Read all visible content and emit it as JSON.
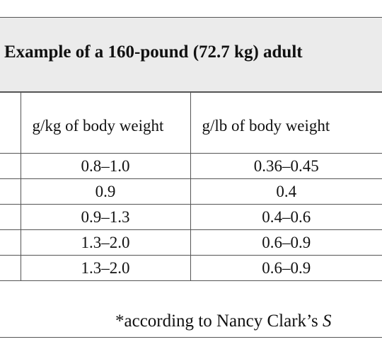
{
  "header": {
    "title": "Example of a 160-pound (72.7 kg) adult"
  },
  "table": {
    "columns": [
      "g/kg of body weight",
      "g/lb of body weight"
    ],
    "rows": [
      [
        "0.8–1.0",
        "0.36–0.45"
      ],
      [
        "0.9",
        "0.4"
      ],
      [
        "0.9–1.3",
        "0.4–0.6"
      ],
      [
        "1.3–2.0",
        "0.6–0.9"
      ],
      [
        "1.3–2.0",
        "0.6–0.9"
      ]
    ]
  },
  "footnote": {
    "text": "*according to Nancy Clark’s ",
    "italic_text": "S"
  }
}
